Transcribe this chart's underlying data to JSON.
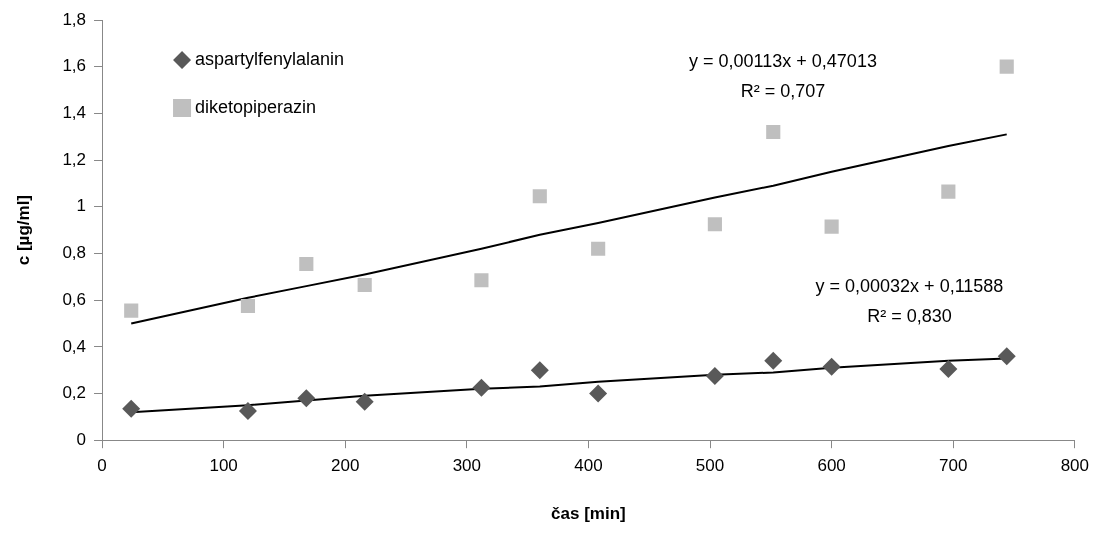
{
  "chart_data": {
    "type": "scatter",
    "xlabel": "čas [min]",
    "ylabel": "c [µg/ml]",
    "x": [
      24,
      120,
      168,
      216,
      312,
      360,
      408,
      504,
      552,
      600,
      696,
      744
    ],
    "series": [
      {
        "name": "aspartylfenylalanin",
        "color": "#595959",
        "marker": "diamond",
        "values": [
          0.135,
          0.125,
          0.18,
          0.165,
          0.225,
          0.3,
          0.2,
          0.275,
          0.34,
          0.315,
          0.305,
          0.36
        ]
      },
      {
        "name": "diketopiperazin",
        "color": "#bfbfbf",
        "marker": "square",
        "values": [
          0.555,
          0.575,
          0.755,
          0.665,
          0.685,
          1.045,
          0.82,
          0.925,
          1.32,
          0.915,
          1.065,
          1.6
        ]
      },
      {
        "type": "line",
        "color": "#000000",
        "marker": "none",
        "values": [
          0.5,
          0.61,
          0.66,
          0.71,
          0.82,
          0.88,
          0.93,
          1.04,
          1.09,
          1.15,
          1.26,
          1.31
        ]
      },
      {
        "type": "line",
        "color": "#000000",
        "marker": "none",
        "values": [
          0.12,
          0.15,
          0.17,
          0.19,
          0.22,
          0.23,
          0.25,
          0.28,
          0.29,
          0.31,
          0.34,
          0.35
        ]
      }
    ],
    "xlim": [
      0,
      800
    ],
    "xticks": [
      0,
      100,
      200,
      300,
      400,
      500,
      600,
      700,
      800
    ],
    "ylim": [
      0,
      1.8
    ],
    "yticks": [
      0,
      {
        "value": 0.2,
        "label": "0,2"
      },
      {
        "value": 0.4,
        "label": "0,4"
      },
      {
        "value": 0.6,
        "label": "0,6"
      },
      {
        "value": 0.8,
        "label": "0,8"
      },
      1,
      {
        "value": 1.2,
        "label": "1,2"
      },
      {
        "value": 1.4,
        "label": "1,4"
      },
      {
        "value": 1.6,
        "label": "1,6"
      },
      {
        "value": 1.8,
        "label": "1,8"
      }
    ],
    "legend": "top left",
    "annotations": [
      "y = 0,00113x + 0,47013\nR² = 0,707",
      "y = 0,00032x + 0,11588\nR² = 0,830"
    ]
  }
}
